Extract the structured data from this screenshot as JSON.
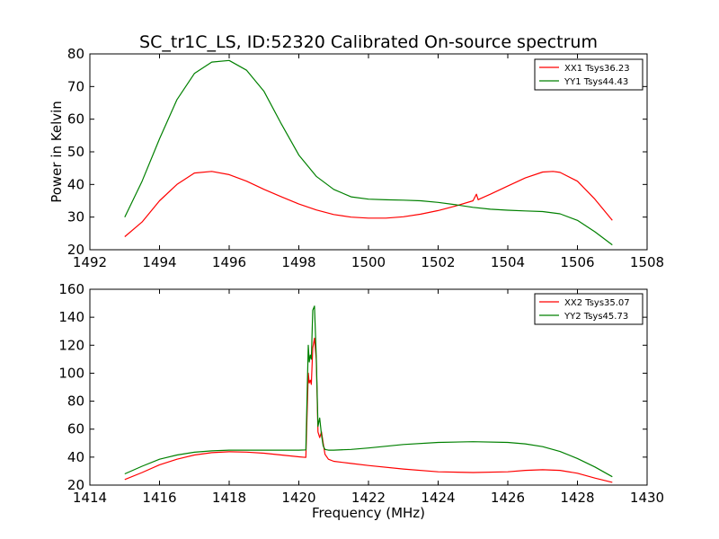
{
  "chart_data": [
    {
      "type": "line",
      "title": "SC_tr1C_LS, ID:52320 Calibrated On-source spectrum",
      "xlabel": "",
      "ylabel": "Power in Kelvin",
      "xlim": [
        1492,
        1508
      ],
      "ylim": [
        20,
        80
      ],
      "xticks": [
        1492,
        1494,
        1496,
        1498,
        1500,
        1502,
        1504,
        1506,
        1508
      ],
      "yticks": [
        20,
        30,
        40,
        50,
        60,
        70,
        80
      ],
      "grid": false,
      "legend_position": "top-right",
      "series": [
        {
          "name": "XX1 Tsys36.23",
          "color": "#ff0000",
          "x": [
            1493.0,
            1493.5,
            1494.0,
            1494.5,
            1495.0,
            1495.5,
            1496.0,
            1496.5,
            1497.0,
            1497.5,
            1498.0,
            1498.5,
            1499.0,
            1499.5,
            1500.0,
            1500.5,
            1501.0,
            1501.5,
            1502.0,
            1502.5,
            1503.0,
            1503.1,
            1503.15,
            1503.2,
            1503.5,
            1504.0,
            1504.5,
            1505.0,
            1505.3,
            1505.5,
            1506.0,
            1506.5,
            1507.0
          ],
          "y": [
            24,
            28.5,
            35,
            40,
            43.5,
            44,
            43,
            41,
            38.5,
            36.2,
            34,
            32.2,
            30.8,
            30.0,
            29.7,
            29.7,
            30.1,
            30.9,
            32.0,
            33.4,
            35.0,
            37.0,
            35.3,
            35.6,
            37.0,
            39.5,
            42.0,
            43.8,
            44.0,
            43.7,
            41.0,
            35.5,
            29.0
          ]
        },
        {
          "name": "YY1 Tsys44.43",
          "color": "#008000",
          "x": [
            1493.0,
            1493.5,
            1494.0,
            1494.5,
            1495.0,
            1495.5,
            1496.0,
            1496.5,
            1497.0,
            1497.5,
            1498.0,
            1498.5,
            1499.0,
            1499.5,
            1500.0,
            1500.5,
            1501.0,
            1501.5,
            1502.0,
            1502.5,
            1503.0,
            1503.5,
            1504.0,
            1504.5,
            1505.0,
            1505.5,
            1506.0,
            1506.5,
            1507.0
          ],
          "y": [
            30,
            41,
            54,
            66,
            74,
            77.5,
            78,
            75,
            68.5,
            58.5,
            49,
            42.5,
            38.5,
            36.2,
            35.5,
            35.3,
            35.2,
            35.0,
            34.5,
            33.8,
            33.0,
            32.4,
            32.1,
            31.9,
            31.7,
            31.0,
            29.0,
            25.5,
            21.5
          ]
        }
      ]
    },
    {
      "type": "line",
      "title": "",
      "xlabel": "Frequency (MHz)",
      "ylabel": "",
      "xlim": [
        1414,
        1430
      ],
      "ylim": [
        20,
        160
      ],
      "xticks": [
        1414,
        1416,
        1418,
        1420,
        1422,
        1424,
        1426,
        1428,
        1430
      ],
      "yticks": [
        20,
        40,
        60,
        80,
        100,
        120,
        140,
        160
      ],
      "grid": false,
      "legend_position": "top-right",
      "series": [
        {
          "name": "XX2 Tsys35.07",
          "color": "#ff0000",
          "x": [
            1415.0,
            1415.5,
            1416.0,
            1416.5,
            1417.0,
            1417.5,
            1418.0,
            1418.5,
            1419.0,
            1419.5,
            1420.0,
            1420.2,
            1420.27,
            1420.3,
            1420.33,
            1420.36,
            1420.4,
            1420.45,
            1420.5,
            1420.55,
            1420.6,
            1420.65,
            1420.7,
            1420.75,
            1420.85,
            1421.0,
            1421.5,
            1422.0,
            1423.0,
            1424.0,
            1425.0,
            1426.0,
            1426.5,
            1427.0,
            1427.5,
            1428.0,
            1428.5,
            1429.0
          ],
          "y": [
            24,
            29,
            34.5,
            38.5,
            41.5,
            43.2,
            43.8,
            43.6,
            42.8,
            41.5,
            40.2,
            39.8,
            100,
            93,
            95,
            92,
            118,
            125,
            110,
            58,
            54,
            58,
            50,
            42,
            38.5,
            37,
            35.5,
            34,
            31.5,
            29.5,
            29.0,
            29.5,
            30.5,
            31,
            30.5,
            28.5,
            25,
            22
          ]
        },
        {
          "name": "YY2 Tsys45.73",
          "color": "#008000",
          "x": [
            1415.0,
            1415.5,
            1416.0,
            1416.5,
            1417.0,
            1417.5,
            1418.0,
            1418.5,
            1419.0,
            1419.5,
            1420.0,
            1420.2,
            1420.27,
            1420.3,
            1420.33,
            1420.36,
            1420.4,
            1420.45,
            1420.5,
            1420.55,
            1420.6,
            1420.65,
            1420.7,
            1420.75,
            1420.85,
            1421.0,
            1421.5,
            1422.0,
            1423.0,
            1424.0,
            1425.0,
            1426.0,
            1426.5,
            1427.0,
            1427.5,
            1428.0,
            1428.5,
            1429.0
          ],
          "y": [
            28,
            33.5,
            38.5,
            41.5,
            43.5,
            44.5,
            45,
            45,
            45,
            45,
            45,
            45.2,
            120,
            108,
            113,
            110,
            145,
            148,
            112,
            62,
            68,
            56,
            48,
            45.5,
            45,
            45,
            45.5,
            46.5,
            49,
            50.5,
            51,
            50.5,
            49.5,
            47.5,
            44,
            39,
            33,
            26
          ]
        }
      ]
    }
  ]
}
